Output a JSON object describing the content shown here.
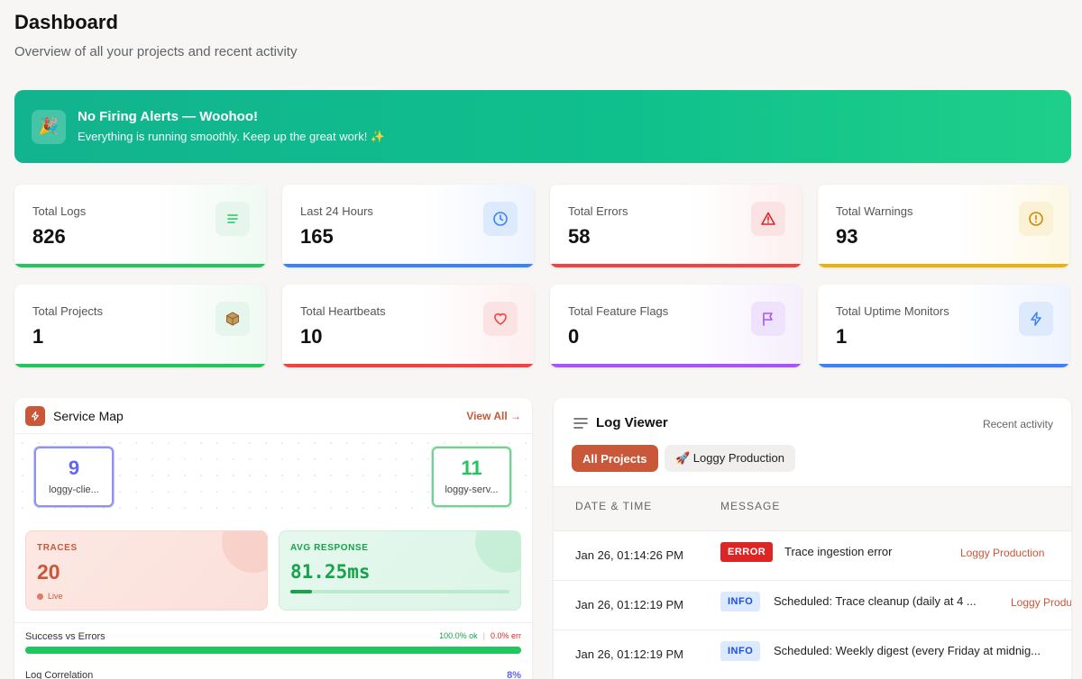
{
  "header": {
    "title": "Dashboard",
    "subtitle": "Overview of all your projects and recent activity"
  },
  "alert": {
    "icon": "🎉",
    "title": "No Firing Alerts — Woohoo!",
    "message": "Everything is running smoothly. Keep up the great work! ✨"
  },
  "stats": [
    {
      "label": "Total Logs",
      "value": "826",
      "icon": "lines-icon",
      "color": "#22c55e"
    },
    {
      "label": "Last 24 Hours",
      "value": "165",
      "icon": "clock-icon",
      "color": "#3b82f6"
    },
    {
      "label": "Total Errors",
      "value": "58",
      "icon": "warning-triangle-icon",
      "color": "#ef4444"
    },
    {
      "label": "Total Warnings",
      "value": "93",
      "icon": "exclamation-circle-icon",
      "color": "#eab308"
    },
    {
      "label": "Total Projects",
      "value": "1",
      "icon": "package-icon",
      "color": "#22c55e"
    },
    {
      "label": "Total Heartbeats",
      "value": "10",
      "icon": "heart-icon",
      "color": "#ef4444"
    },
    {
      "label": "Total Feature Flags",
      "value": "0",
      "icon": "flag-icon",
      "color": "#a855f7"
    },
    {
      "label": "Total Uptime Monitors",
      "value": "1",
      "icon": "bolt-icon",
      "color": "#3b82f6"
    }
  ],
  "service_map": {
    "title": "Service Map",
    "view_all": "View All →",
    "nodes": [
      {
        "count": "9",
        "name": "loggy-clie...",
        "color": "#6366f1"
      },
      {
        "count": "11",
        "name": "loggy-serv...",
        "color": "#22c55e"
      }
    ],
    "traces": {
      "label": "TRACES",
      "value": "20",
      "status": "Live"
    },
    "avg_response": {
      "label": "AVG RESPONSE",
      "value": "81.25ms",
      "bar_fill": 0.1
    },
    "success_vs_errors": {
      "label": "Success vs Errors",
      "ok": "100.0% ok",
      "sep": "|",
      "err": "0.0% err",
      "ok_fraction": 1.0
    },
    "log_correlation": {
      "label": "Log Correlation",
      "value": "8%"
    }
  },
  "log_viewer": {
    "title": "Log Viewer",
    "subtitle": "Recent activity",
    "filters": [
      {
        "label": "All Projects",
        "active": true
      },
      {
        "label": "🚀 Loggy Production",
        "active": false
      }
    ],
    "columns": [
      "DATE & TIME",
      "MESSAGE"
    ],
    "rows": [
      {
        "date": "Jan 26, 01:14:26 PM",
        "level": "ERROR",
        "message": "Trace ingestion error",
        "project": "Loggy Production"
      },
      {
        "date": "Jan 26, 01:12:19 PM",
        "level": "INFO",
        "message": "Scheduled: Trace cleanup (daily at 4 ...",
        "project": "Loggy Produ"
      },
      {
        "date": "Jan 26, 01:12:19 PM",
        "level": "INFO",
        "message": "Scheduled: Weekly digest (every Friday at midnig...",
        "project": ""
      }
    ]
  },
  "colors": {
    "accent": "#c9573a",
    "success": "#22c55e",
    "error": "#dc2626",
    "info": "#1d4ed8"
  }
}
